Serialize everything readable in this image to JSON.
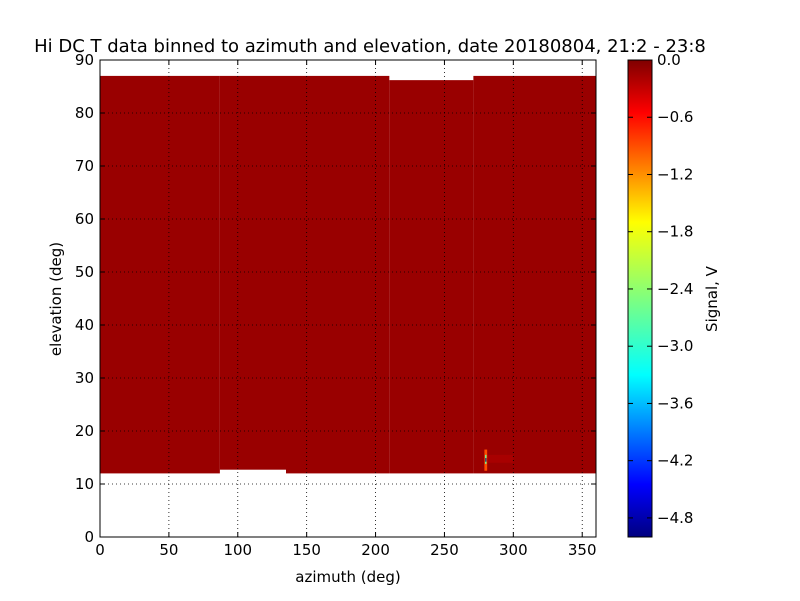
{
  "chart_data": {
    "type": "heatmap",
    "title": "Hi DC T data binned to azimuth and elevation, date 20180804, 21:2 - 23:8",
    "xlabel": "azimuth (deg)",
    "ylabel": "elevation (deg)",
    "xlim": [
      0,
      360
    ],
    "ylim": [
      0,
      90
    ],
    "xticks": [
      "0",
      "50",
      "100",
      "150",
      "200",
      "250",
      "300",
      "350"
    ],
    "xtick_values": [
      0,
      50,
      100,
      150,
      200,
      250,
      300,
      350
    ],
    "yticks": [
      "0",
      "10",
      "20",
      "30",
      "40",
      "50",
      "60",
      "70",
      "80",
      "90"
    ],
    "ytick_values": [
      0,
      10,
      20,
      30,
      40,
      50,
      60,
      70,
      80,
      90
    ],
    "grid": true,
    "colormap": "jet",
    "colorbar": {
      "label": "Signal, V",
      "range": [
        -5.0,
        0.0
      ],
      "ticks": [
        "0.0",
        "−0.6",
        "−1.2",
        "−1.8",
        "−2.4",
        "−3.0",
        "−3.6",
        "−4.2",
        "−4.8"
      ],
      "tick_values": [
        0.0,
        -0.6,
        -1.2,
        -1.8,
        -2.4,
        -3.0,
        -3.6,
        -4.2,
        -4.8
      ]
    },
    "regions": [
      {
        "az": [
          0,
          87
        ],
        "el": [
          12,
          87
        ],
        "value": 0.0
      },
      {
        "az": [
          87,
          135
        ],
        "el": [
          12.7,
          87
        ],
        "value": 0.0
      },
      {
        "az": [
          135,
          210
        ],
        "el": [
          12,
          87
        ],
        "value": 0.0
      },
      {
        "az": [
          210,
          271
        ],
        "el": [
          12,
          86.2
        ],
        "value": 0.0
      },
      {
        "az": [
          271,
          360
        ],
        "el": [
          12,
          87
        ],
        "value": 0.0
      }
    ],
    "features": [
      {
        "az": [
          280,
          300
        ],
        "el": [
          14,
          15.5
        ],
        "value": -0.2
      },
      {
        "az": [
          279,
          281
        ],
        "el": [
          12.5,
          16.5
        ],
        "value": -1.0
      },
      {
        "az": [
          279.5,
          280.5
        ],
        "el": [
          13.8,
          15.5
        ],
        "value": -2.6
      },
      {
        "az": [
          279.7,
          280.3
        ],
        "el": [
          14.2,
          14.9
        ],
        "value": -5.0
      }
    ],
    "fill_value": 0.0
  }
}
